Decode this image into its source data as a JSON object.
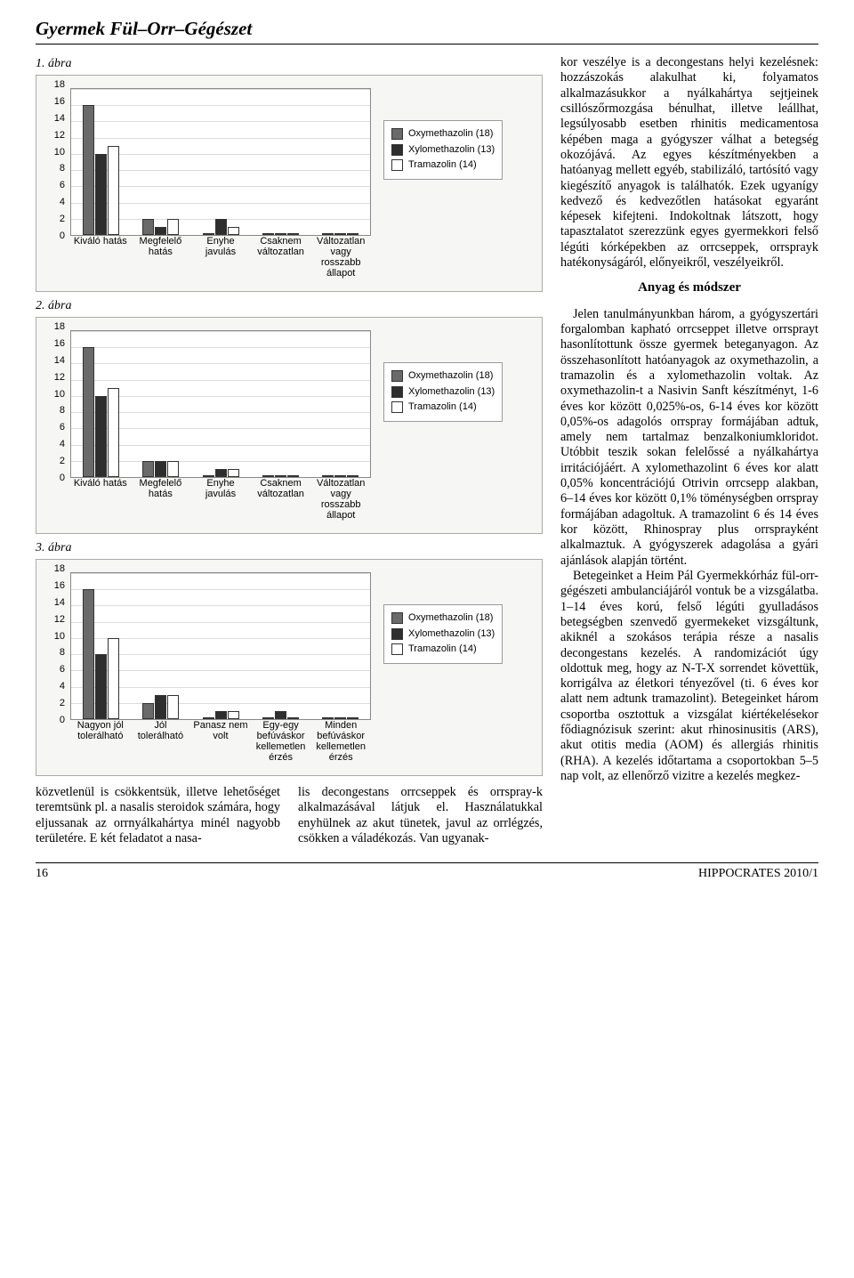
{
  "header": {
    "title": "Gyermek Fül–Orr–Gégészet"
  },
  "figures": {
    "fig1": {
      "label": "1. ábra",
      "type": "bar",
      "ymax": 18,
      "ytick": 2,
      "categories": [
        "Kiváló hatás",
        "Megfelelő\nhatás",
        "Enyhe javulás",
        "Csaknem\nváltozatlan",
        "Változatlan\nvagy\nrosszabb\nállapot"
      ],
      "series": [
        {
          "label": "Oxymethazolin (18)",
          "color": "#6a6a6a",
          "values": [
            16,
            2,
            0,
            0,
            0
          ]
        },
        {
          "label": "Xylomethazolin (13)",
          "color": "#2e2e2e",
          "values": [
            10,
            1,
            2,
            0,
            0
          ]
        },
        {
          "label": "Tramazolin (14)",
          "color": "#ffffff",
          "values": [
            11,
            2,
            1,
            0,
            0
          ]
        }
      ],
      "bg": "#f6f6f4",
      "grid": "#dcdcdc"
    },
    "fig2": {
      "label": "2. ábra",
      "type": "bar",
      "ymax": 18,
      "ytick": 2,
      "categories": [
        "Kiváló hatás",
        "Megfelelő\nhatás",
        "Enyhe javulás",
        "Csaknem\nváltozatlan",
        "Változatlan\nvagy\nrosszabb\nállapot"
      ],
      "series": [
        {
          "label": "Oxymethazolin (18)",
          "color": "#6a6a6a",
          "values": [
            16,
            2,
            0,
            0,
            0
          ]
        },
        {
          "label": "Xylomethazolin (13)",
          "color": "#2e2e2e",
          "values": [
            10,
            2,
            1,
            0,
            0
          ]
        },
        {
          "label": "Tramazolin (14)",
          "color": "#ffffff",
          "values": [
            11,
            2,
            1,
            0,
            0
          ]
        }
      ],
      "bg": "#f6f6f4",
      "grid": "#dcdcdc"
    },
    "fig3": {
      "label": "3. ábra",
      "type": "bar",
      "ymax": 18,
      "ytick": 2,
      "categories": [
        "Nagyon jól\ntolerálható",
        "Jól tolerálható",
        "Panasz nem\nvolt",
        "Egy-egy\nbefúváskor\nkellemetlen\nérzés",
        "Minden\nbefúváskor\nkellemetlen\nérzés"
      ],
      "series": [
        {
          "label": "Oxymethazolin (18)",
          "color": "#6a6a6a",
          "values": [
            16,
            2,
            0,
            0,
            0
          ]
        },
        {
          "label": "Xylomethazolin (13)",
          "color": "#2e2e2e",
          "values": [
            8,
            3,
            1,
            1,
            0
          ]
        },
        {
          "label": "Tramazolin (14)",
          "color": "#ffffff",
          "values": [
            10,
            3,
            1,
            0,
            0
          ]
        }
      ],
      "bg": "#f6f6f4",
      "grid": "#dcdcdc"
    }
  },
  "bottom_left": "közvetlenül is csökkentsük, illetve lehetőséget teremtsünk pl. a nasalis steroidok számára, hogy eljussanak az orrnyálkahártya minél nagyobb területére. E két feladatot a nasa-",
  "bottom_mid": "lis decongestans orrcseppek és orrspray-k alkalmazásával látjuk el. Használatukkal enyhülnek az akut tünetek, javul az orrlégzés, csökken a váladékozás. Van ugyanak-",
  "right": {
    "p1": "kor veszélye is a decongestans helyi kezelésnek: hozzászokás alakulhat ki, folyamatos alkalmazásukkor a nyálkahártya sejtjeinek csillószőr­mozgása bénulhat, illetve leállhat, legsúlyosabb esetben rhinitis medicamentosa képében maga a gyógyszer válhat a betegség okozójává. Az egyes készítményekben a hatóanyag mellett egyéb, stabilizáló, tartósító vagy kiegészítő anyagok is találhatók. Ezek ugyanígy kedvező és kedvezőtlen hatásokat egyaránt képesek kifejteni. Indokoltnak látszott, hogy tapasztalatot szerezzünk egyes gyermekkori felső légúti kórképekben az orrcseppek, orrsprayk hatékonyságáról, előnyeikről, veszélyeikről.",
    "heading": "Anyag és módszer",
    "p2": "Jelen tanulmányunkban három, a gyógyszertári forgalomban kapható orrcseppet illetve orrsprayt hasonlítottunk össze gyermek beteganyagon. Az összehasonlított hatóanyagok az oxymethazolin, a tramazolin és a xylomethazolin voltak. Az oxymethazolin-t a Nasivin Sanft készítményt, 1-6 éves kor között 0,025%-os, 6-14 éves kor között 0,05%-os adagolós orrspray formájában adtuk, amely nem tartalmaz benzalkoniumkloridot. Utóbbit teszik sokan felelőssé a nyálkahártya irritációjáért. A xylomethazolint 6 éves kor alatt 0,05% koncentrációjú Otrivin orrcsepp alakban, 6–14 éves kor között 0,1% töménységben orrspray formájában adagoltuk. A tramazolint 6 és 14 éves kor között, Rhinospray plus orrsprayként alkalmaztuk. A gyógyszerek adagolása a gyári ajánlások alapján történt.",
    "p3": "Betegeinket a Heim Pál Gyermekkórház fül-orr-gégészeti ambulanciájáról vontuk be a vizsgálatba. 1–14 éves korú, felső légúti gyulladásos betegségben szenvedő gyermekeket vizsgáltunk, akiknél a szokásos terápia része a nasalis decongestans kezelés. A randomizációt úgy oldottuk meg, hogy az N-T-X sorrendet követtük, korrigálva az életkori tényezővel (ti. 6 éves kor alatt nem adtunk tramazolint). Betegeinket három csoportba osztottuk a vizsgálat kiértékelésekor fődiagnózisuk szerint: akut rhinosinusitis (ARS), akut otitis media (AOM) és allergiás rhinitis (RHA). A kezelés időtartama a csoportokban 5–5 nap volt, az ellenőrző vizitre a kezelés megkez-"
  },
  "footer": {
    "page": "16",
    "journal": "HIPPOCRATES   2010/1"
  }
}
